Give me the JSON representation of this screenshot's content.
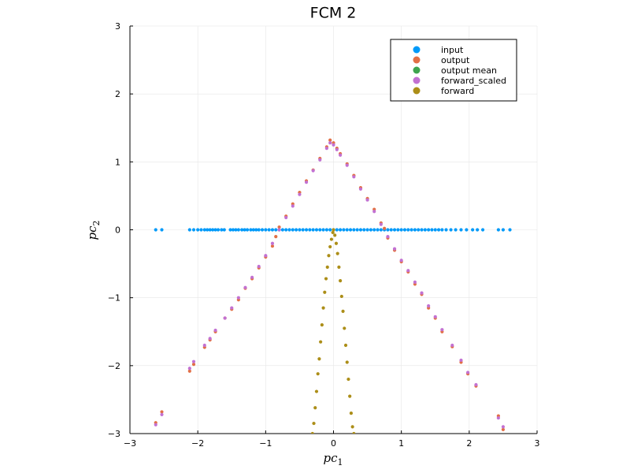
{
  "chart_data": {
    "type": "scatter",
    "title": "FCM 2",
    "xlabel": "pc",
    "xlabel_sub": "1",
    "ylabel": "pc",
    "ylabel_sub": "2",
    "xlim": [
      -3,
      3
    ],
    "ylim": [
      -3,
      3
    ],
    "xticks": [
      -3,
      -2,
      -1,
      0,
      1,
      2,
      3
    ],
    "yticks": [
      -3,
      -2,
      -1,
      0,
      1,
      2,
      3
    ],
    "grid": true,
    "legend_position": "top-right",
    "series": [
      {
        "name": "input",
        "color": "#009af9",
        "points": [
          [
            -2.62,
            0
          ],
          [
            -2.53,
            0
          ],
          [
            -2.12,
            0
          ],
          [
            -2.06,
            0
          ],
          [
            -2.0,
            0
          ],
          [
            -1.95,
            0
          ],
          [
            -1.9,
            0
          ],
          [
            -1.86,
            0
          ],
          [
            -1.82,
            0
          ],
          [
            -1.78,
            0
          ],
          [
            -1.74,
            0
          ],
          [
            -1.7,
            0
          ],
          [
            -1.65,
            0
          ],
          [
            -1.61,
            0
          ],
          [
            -1.52,
            0
          ],
          [
            -1.48,
            0
          ],
          [
            -1.44,
            0
          ],
          [
            -1.4,
            0
          ],
          [
            -1.35,
            0
          ],
          [
            -1.31,
            0
          ],
          [
            -1.27,
            0
          ],
          [
            -1.22,
            0
          ],
          [
            -1.18,
            0
          ],
          [
            -1.14,
            0
          ],
          [
            -1.1,
            0
          ],
          [
            -1.05,
            0
          ],
          [
            -1.0,
            0
          ],
          [
            -0.95,
            0
          ],
          [
            -0.9,
            0
          ],
          [
            -0.85,
            0
          ],
          [
            -0.8,
            0
          ],
          [
            -0.75,
            0
          ],
          [
            -0.7,
            0
          ],
          [
            -0.65,
            0
          ],
          [
            -0.6,
            0
          ],
          [
            -0.55,
            0
          ],
          [
            -0.5,
            0
          ],
          [
            -0.45,
            0
          ],
          [
            -0.4,
            0
          ],
          [
            -0.35,
            0
          ],
          [
            -0.3,
            0
          ],
          [
            -0.25,
            0
          ],
          [
            -0.2,
            0
          ],
          [
            -0.15,
            0
          ],
          [
            -0.1,
            0
          ],
          [
            -0.05,
            0
          ],
          [
            0.0,
            0
          ],
          [
            0.05,
            0
          ],
          [
            0.1,
            0
          ],
          [
            0.15,
            0
          ],
          [
            0.2,
            0
          ],
          [
            0.25,
            0
          ],
          [
            0.3,
            0
          ],
          [
            0.35,
            0
          ],
          [
            0.4,
            0
          ],
          [
            0.45,
            0
          ],
          [
            0.5,
            0
          ],
          [
            0.55,
            0
          ],
          [
            0.6,
            0
          ],
          [
            0.65,
            0
          ],
          [
            0.7,
            0
          ],
          [
            0.75,
            0
          ],
          [
            0.8,
            0
          ],
          [
            0.85,
            0
          ],
          [
            0.9,
            0
          ],
          [
            0.95,
            0
          ],
          [
            1.0,
            0
          ],
          [
            1.05,
            0
          ],
          [
            1.1,
            0
          ],
          [
            1.15,
            0
          ],
          [
            1.2,
            0
          ],
          [
            1.25,
            0
          ],
          [
            1.3,
            0
          ],
          [
            1.35,
            0
          ],
          [
            1.4,
            0
          ],
          [
            1.45,
            0
          ],
          [
            1.5,
            0
          ],
          [
            1.55,
            0
          ],
          [
            1.6,
            0
          ],
          [
            1.66,
            0
          ],
          [
            1.73,
            0
          ],
          [
            1.8,
            0
          ],
          [
            1.88,
            0
          ],
          [
            1.96,
            0
          ],
          [
            2.05,
            0
          ],
          [
            2.12,
            0
          ],
          [
            2.2,
            0
          ],
          [
            2.43,
            0
          ],
          [
            2.5,
            0
          ],
          [
            2.6,
            0
          ]
        ]
      },
      {
        "name": "output",
        "color": "#e26f46",
        "points": [
          [
            -2.62,
            -2.84
          ],
          [
            -2.53,
            -2.68
          ],
          [
            -2.12,
            -2.08
          ],
          [
            -2.06,
            -1.98
          ],
          [
            -1.9,
            -1.73
          ],
          [
            -1.82,
            -1.62
          ],
          [
            -1.74,
            -1.5
          ],
          [
            -1.6,
            -1.3
          ],
          [
            -1.5,
            -1.17
          ],
          [
            -1.4,
            -1.03
          ],
          [
            -1.3,
            -0.86
          ],
          [
            -1.2,
            -0.72
          ],
          [
            -1.1,
            -0.56
          ],
          [
            -1.0,
            -0.4
          ],
          [
            -0.9,
            -0.24
          ],
          [
            -0.85,
            -0.1
          ],
          [
            -0.8,
            0.04
          ],
          [
            -0.7,
            0.2
          ],
          [
            -0.6,
            0.38
          ],
          [
            -0.5,
            0.55
          ],
          [
            -0.4,
            0.72
          ],
          [
            -0.3,
            0.88
          ],
          [
            -0.2,
            1.05
          ],
          [
            -0.1,
            1.22
          ],
          [
            -0.05,
            1.32
          ],
          [
            0.0,
            1.28
          ],
          [
            0.05,
            1.2
          ],
          [
            0.1,
            1.12
          ],
          [
            0.2,
            0.97
          ],
          [
            0.3,
            0.8
          ],
          [
            0.4,
            0.62
          ],
          [
            0.5,
            0.46
          ],
          [
            0.6,
            0.3
          ],
          [
            0.7,
            0.1
          ],
          [
            0.75,
            0.02
          ],
          [
            0.8,
            -0.12
          ],
          [
            0.9,
            -0.3
          ],
          [
            1.0,
            -0.47
          ],
          [
            1.1,
            -0.62
          ],
          [
            1.2,
            -0.8
          ],
          [
            1.3,
            -0.95
          ],
          [
            1.4,
            -1.15
          ],
          [
            1.5,
            -1.3
          ],
          [
            1.6,
            -1.5
          ],
          [
            1.75,
            -1.72
          ],
          [
            1.88,
            -1.95
          ],
          [
            1.98,
            -2.12
          ],
          [
            2.1,
            -2.3
          ],
          [
            2.43,
            -2.74
          ],
          [
            2.5,
            -2.94
          ]
        ]
      },
      {
        "name": "output mean",
        "color": "#3ea44e",
        "points": []
      },
      {
        "name": "forward_scaled",
        "color": "#c271d2",
        "points": [
          [
            -2.62,
            -2.87
          ],
          [
            -2.53,
            -2.72
          ],
          [
            -2.12,
            -2.04
          ],
          [
            -2.06,
            -1.94
          ],
          [
            -1.9,
            -1.7
          ],
          [
            -1.82,
            -1.6
          ],
          [
            -1.74,
            -1.48
          ],
          [
            -1.6,
            -1.3
          ],
          [
            -1.5,
            -1.15
          ],
          [
            -1.4,
            -1.0
          ],
          [
            -1.3,
            -0.85
          ],
          [
            -1.2,
            -0.7
          ],
          [
            -1.1,
            -0.54
          ],
          [
            -1.0,
            -0.38
          ],
          [
            -0.9,
            -0.2
          ],
          [
            -0.8,
            0.0
          ],
          [
            -0.7,
            0.18
          ],
          [
            -0.6,
            0.35
          ],
          [
            -0.5,
            0.52
          ],
          [
            -0.4,
            0.7
          ],
          [
            -0.3,
            0.87
          ],
          [
            -0.2,
            1.03
          ],
          [
            -0.1,
            1.2
          ],
          [
            -0.05,
            1.28
          ],
          [
            0.0,
            1.25
          ],
          [
            0.05,
            1.18
          ],
          [
            0.1,
            1.1
          ],
          [
            0.2,
            0.95
          ],
          [
            0.3,
            0.78
          ],
          [
            0.4,
            0.6
          ],
          [
            0.5,
            0.44
          ],
          [
            0.6,
            0.27
          ],
          [
            0.7,
            0.08
          ],
          [
            0.8,
            -0.1
          ],
          [
            0.9,
            -0.28
          ],
          [
            1.0,
            -0.45
          ],
          [
            1.1,
            -0.6
          ],
          [
            1.2,
            -0.77
          ],
          [
            1.3,
            -0.93
          ],
          [
            1.4,
            -1.12
          ],
          [
            1.5,
            -1.28
          ],
          [
            1.6,
            -1.47
          ],
          [
            1.75,
            -1.7
          ],
          [
            1.88,
            -1.92
          ],
          [
            1.98,
            -2.1
          ],
          [
            2.1,
            -2.28
          ],
          [
            2.43,
            -2.77
          ],
          [
            2.5,
            -2.9
          ]
        ]
      },
      {
        "name": "forward",
        "color": "#ac8e18",
        "points": [
          [
            -0.31,
            -3.0
          ],
          [
            -0.29,
            -2.85
          ],
          [
            -0.27,
            -2.62
          ],
          [
            -0.25,
            -2.38
          ],
          [
            -0.23,
            -2.12
          ],
          [
            -0.21,
            -1.9
          ],
          [
            -0.19,
            -1.65
          ],
          [
            -0.17,
            -1.4
          ],
          [
            -0.15,
            -1.15
          ],
          [
            -0.13,
            -0.92
          ],
          [
            -0.11,
            -0.72
          ],
          [
            -0.09,
            -0.55
          ],
          [
            -0.07,
            -0.38
          ],
          [
            -0.05,
            -0.25
          ],
          [
            -0.03,
            -0.14
          ],
          [
            -0.01,
            -0.04
          ],
          [
            0.0,
            0.0
          ],
          [
            0.02,
            -0.08
          ],
          [
            0.04,
            -0.2
          ],
          [
            0.06,
            -0.35
          ],
          [
            0.08,
            -0.55
          ],
          [
            0.1,
            -0.75
          ],
          [
            0.12,
            -0.98
          ],
          [
            0.14,
            -1.2
          ],
          [
            0.16,
            -1.45
          ],
          [
            0.18,
            -1.7
          ],
          [
            0.2,
            -1.95
          ],
          [
            0.22,
            -2.2
          ],
          [
            0.24,
            -2.45
          ],
          [
            0.26,
            -2.7
          ],
          [
            0.28,
            -2.9
          ],
          [
            0.3,
            -3.0
          ]
        ]
      }
    ]
  }
}
